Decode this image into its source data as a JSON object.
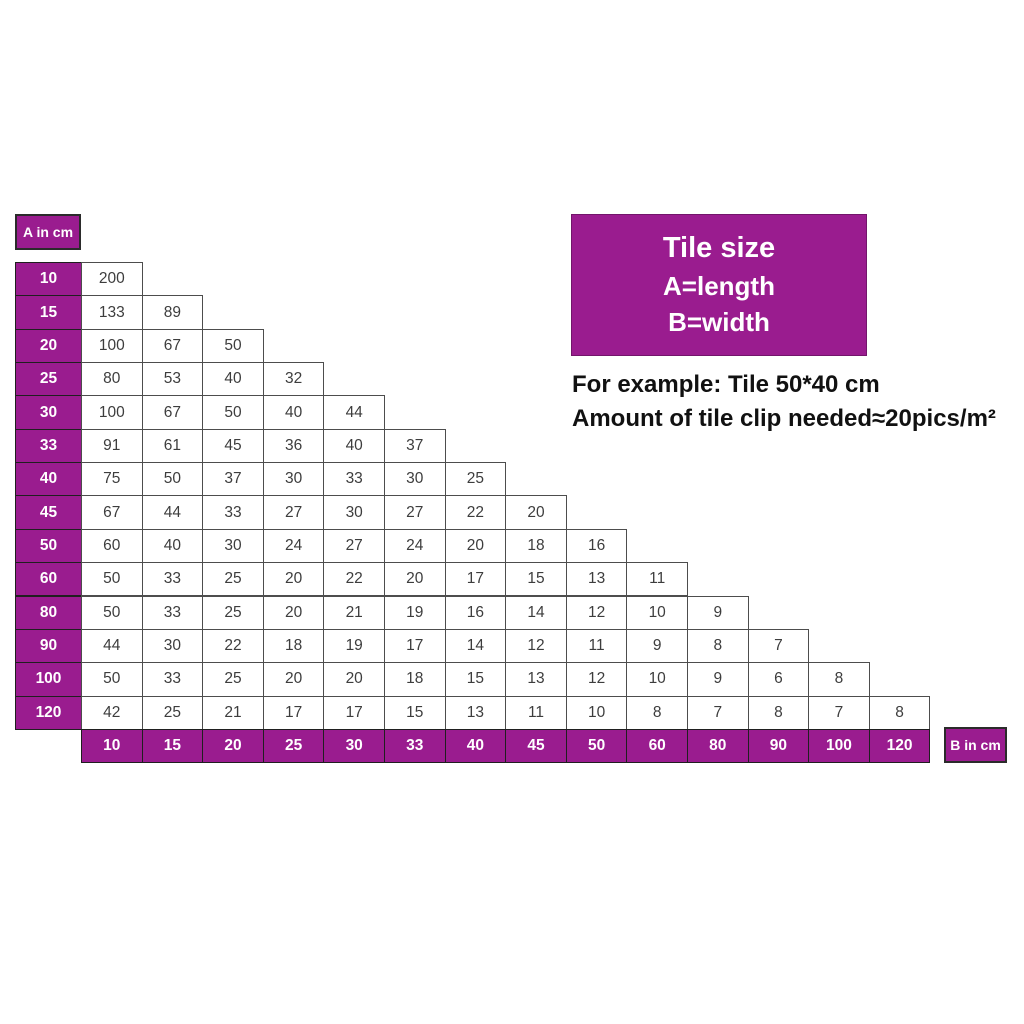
{
  "colors": {
    "purple": "#9A1C8F",
    "data_cell_border": "#4d4d4d",
    "header_cell_border": "#1f1f1f",
    "data_text": "#3d3d3d",
    "header_text": "#ffffff"
  },
  "labels": {
    "a_axis": "A in cm",
    "b_axis": "B in cm"
  },
  "legend": {
    "title": "Tile size",
    "a_line": "A=length",
    "b_line": "B=width"
  },
  "example": {
    "line1": "For example: Tile 50*40 cm",
    "line2": "Amount of tile clip needed≈20pics/m²"
  },
  "table": {
    "a_values": [
      "10",
      "15",
      "20",
      "25",
      "30",
      "33",
      "40",
      "45",
      "50",
      "60",
      "80",
      "90",
      "100",
      "120"
    ],
    "b_values": [
      "10",
      "15",
      "20",
      "25",
      "30",
      "33",
      "40",
      "45",
      "50",
      "60",
      "80",
      "90",
      "100",
      "120"
    ],
    "matrix": [
      [
        200
      ],
      [
        133,
        89
      ],
      [
        100,
        67,
        50
      ],
      [
        80,
        53,
        40,
        32
      ],
      [
        100,
        67,
        50,
        40,
        44
      ],
      [
        91,
        61,
        45,
        36,
        40,
        37
      ],
      [
        75,
        50,
        37,
        30,
        33,
        30,
        25
      ],
      [
        67,
        44,
        33,
        27,
        30,
        27,
        22,
        20
      ],
      [
        60,
        40,
        30,
        24,
        27,
        24,
        20,
        18,
        16
      ],
      [
        50,
        33,
        25,
        20,
        22,
        20,
        17,
        15,
        13,
        11
      ],
      [
        50,
        33,
        25,
        20,
        21,
        19,
        16,
        14,
        12,
        10,
        9
      ],
      [
        44,
        30,
        22,
        18,
        19,
        17,
        14,
        12,
        11,
        9,
        8,
        7
      ],
      [
        50,
        33,
        25,
        20,
        20,
        18,
        15,
        13,
        12,
        10,
        9,
        6,
        8
      ],
      [
        42,
        25,
        21,
        17,
        17,
        15,
        13,
        11,
        10,
        8,
        7,
        8,
        7,
        8
      ]
    ]
  },
  "chart_data": {
    "type": "table",
    "title": "Tile size: A=length, B=width",
    "xlabel": "B in cm",
    "ylabel": "A in cm",
    "row_header": "A in cm",
    "col_header": "B in cm",
    "rows": [
      "10",
      "15",
      "20",
      "25",
      "30",
      "33",
      "40",
      "45",
      "50",
      "60",
      "80",
      "90",
      "100",
      "120"
    ],
    "columns": [
      "10",
      "15",
      "20",
      "25",
      "30",
      "33",
      "40",
      "45",
      "50",
      "60",
      "80",
      "90",
      "100",
      "120"
    ],
    "values": [
      [
        200
      ],
      [
        133,
        89
      ],
      [
        100,
        67,
        50
      ],
      [
        80,
        53,
        40,
        32
      ],
      [
        100,
        67,
        50,
        40,
        44
      ],
      [
        91,
        61,
        45,
        36,
        40,
        37
      ],
      [
        75,
        50,
        37,
        30,
        33,
        30,
        25
      ],
      [
        67,
        44,
        33,
        27,
        30,
        27,
        22,
        20
      ],
      [
        60,
        40,
        30,
        24,
        27,
        24,
        20,
        18,
        16
      ],
      [
        50,
        33,
        25,
        20,
        22,
        20,
        17,
        15,
        13,
        11
      ],
      [
        50,
        33,
        25,
        20,
        21,
        19,
        16,
        14,
        12,
        10,
        9
      ],
      [
        44,
        30,
        22,
        18,
        19,
        17,
        14,
        12,
        11,
        9,
        8,
        7
      ],
      [
        50,
        33,
        25,
        20,
        20,
        18,
        15,
        13,
        12,
        10,
        9,
        6,
        8
      ],
      [
        42,
        25,
        21,
        17,
        17,
        15,
        13,
        11,
        10,
        8,
        7,
        8,
        7,
        8
      ]
    ],
    "annotations": [
      "For example: Tile 50*40 cm",
      "Amount of tile clip needed≈20pics/m²"
    ],
    "layout": "lower-triangular staircase; row headers left, column headers bottom"
  }
}
